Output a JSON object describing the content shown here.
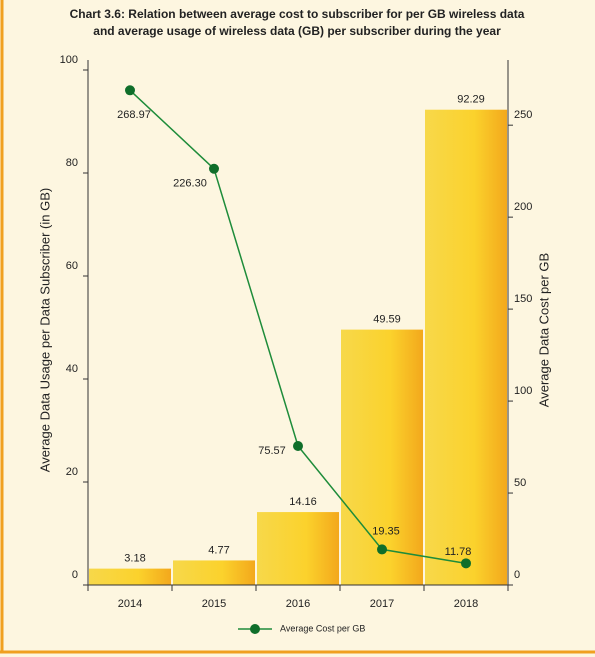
{
  "chart_data": {
    "type": "bar",
    "title": [
      "Chart 3.6: Relation between average cost to subscriber for per GB wireless data",
      "and average usage of wireless data (GB) per subscriber during the year"
    ],
    "categories": [
      "2014",
      "2015",
      "2016",
      "2017",
      "2018"
    ],
    "series": [
      {
        "name": "Average Data Usage per Data Subscriber (in GB)",
        "type": "bar",
        "color": "#f5c518",
        "values": [
          3.18,
          4.77,
          14.16,
          49.59,
          92.29
        ]
      },
      {
        "name": "Average Cost per GB",
        "type": "line",
        "axis": "y2",
        "color": "#1e8c3a",
        "values": [
          268.97,
          226.3,
          75.57,
          19.35,
          11.78
        ],
        "value_labels": [
          "268.97",
          "226.30",
          "75.57",
          "19.35",
          "11.78"
        ]
      }
    ],
    "y_label": "Average Data Usage per Data Subscriber (in GB)",
    "y2_label": "Average Data Cost per GB",
    "ylim": [
      0,
      100
    ],
    "yticks": [
      0,
      20,
      40,
      60,
      80,
      100
    ],
    "y2lim": [
      0,
      280
    ],
    "y2ticks": [
      0,
      50,
      100,
      150,
      200,
      250
    ],
    "legend": "bottom"
  }
}
